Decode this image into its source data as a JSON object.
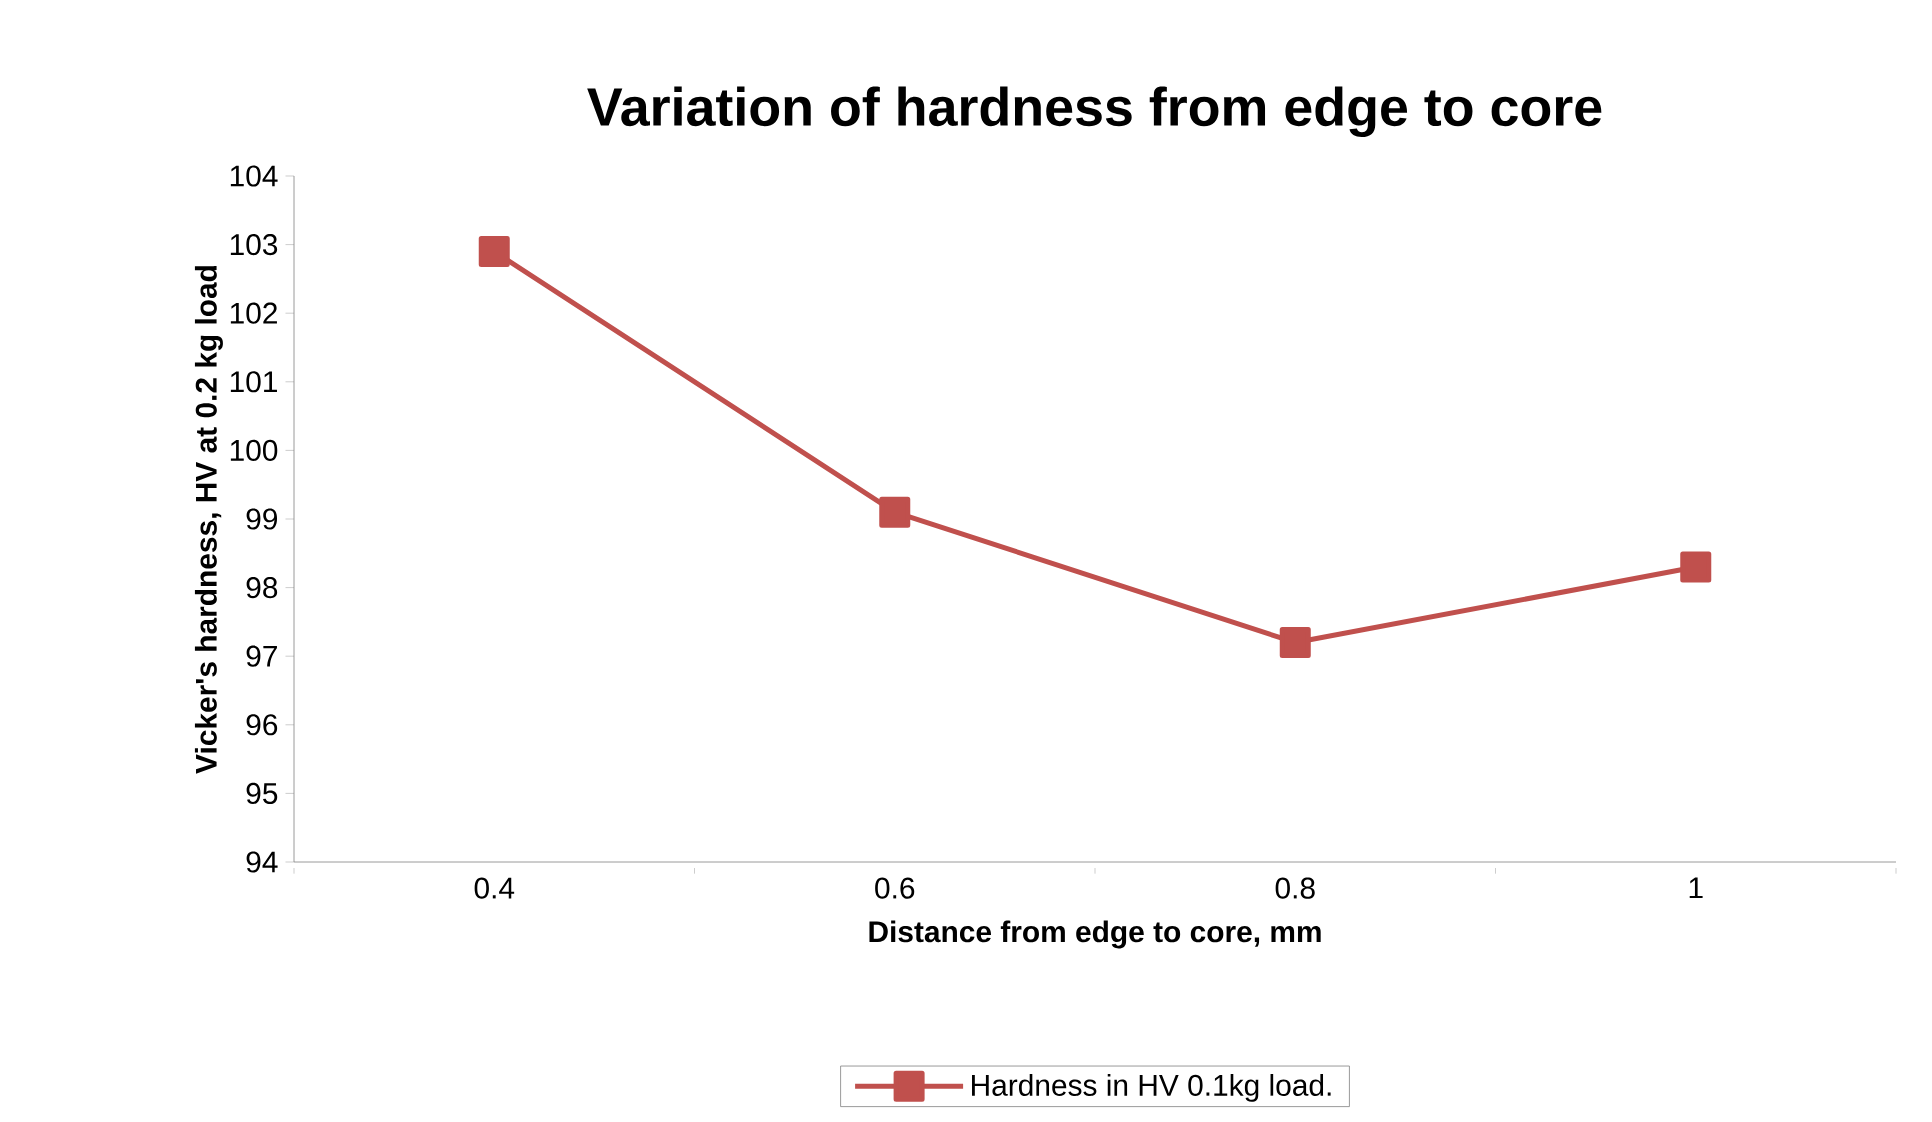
{
  "chart_data": {
    "type": "line",
    "title": "Variation of hardness from edge to core",
    "xlabel": "Distance from edge to core, mm",
    "ylabel": "Vicker's hardness, HV at 0.2 kg load",
    "categories": [
      "0.4",
      "0.6",
      "0.8",
      "1"
    ],
    "series": [
      {
        "name": "Hardness in HV 0.1kg load.",
        "color": "#c0504d",
        "values": [
          102.9,
          99.1,
          97.2,
          98.3
        ]
      }
    ],
    "ylim": [
      94,
      104
    ],
    "yticks": [
      94,
      95,
      96,
      97,
      98,
      99,
      100,
      101,
      102,
      103,
      104
    ],
    "legend": "bottom",
    "marker": "square",
    "line_style": "solid"
  }
}
